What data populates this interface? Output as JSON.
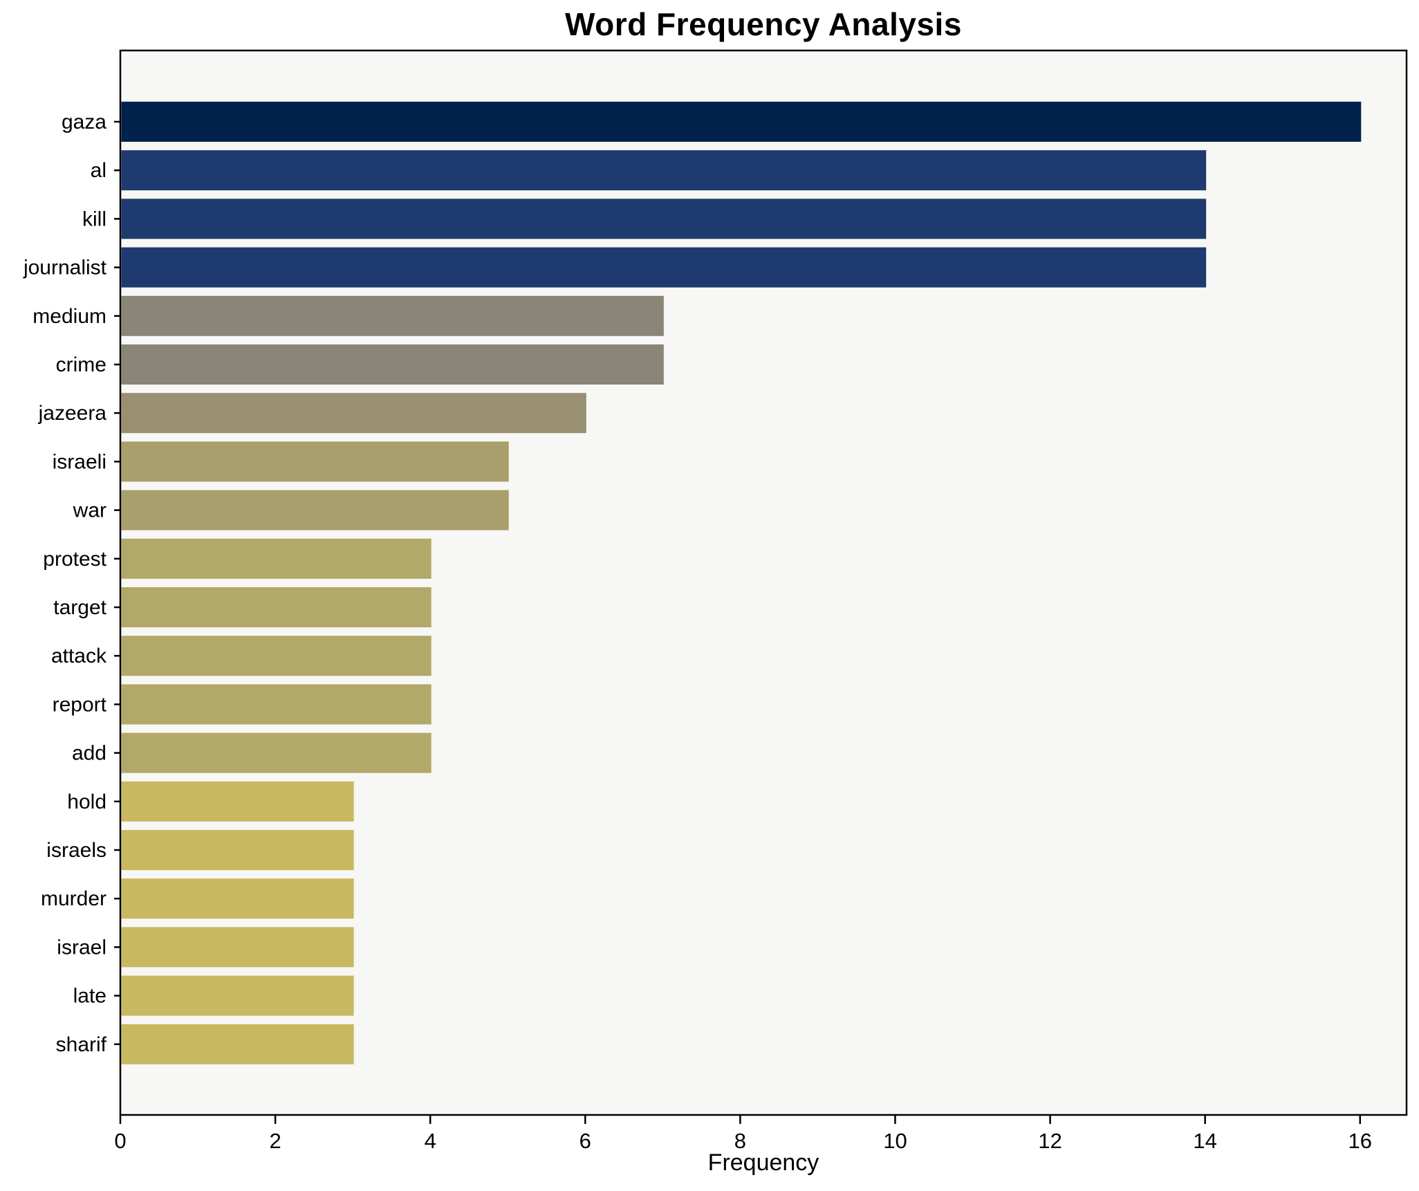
{
  "chart_data": {
    "type": "bar",
    "orientation": "horizontal",
    "title": "Word Frequency Analysis",
    "xlabel": "Frequency",
    "ylabel": "",
    "categories": [
      "gaza",
      "al",
      "kill",
      "journalist",
      "medium",
      "crime",
      "jazeera",
      "israeli",
      "war",
      "protest",
      "target",
      "attack",
      "report",
      "add",
      "hold",
      "israels",
      "murder",
      "israel",
      "late",
      "sharif"
    ],
    "values": [
      16,
      14,
      14,
      14,
      7,
      7,
      6,
      5,
      5,
      4,
      4,
      4,
      4,
      4,
      3,
      3,
      3,
      3,
      3,
      3
    ],
    "bar_colors": [
      "#01224d",
      "#1e3a6e",
      "#1e3a6e",
      "#1e3a6e",
      "#8a8576",
      "#8a8576",
      "#989070",
      "#a99f6d",
      "#a99f6d",
      "#b2a869",
      "#b2a869",
      "#b2a869",
      "#b2a869",
      "#b2a869",
      "#c8b961",
      "#c8b961",
      "#c8b961",
      "#c8b961",
      "#c8b961",
      "#c8b961"
    ],
    "xticks": [
      0,
      2,
      4,
      6,
      8,
      10,
      12,
      14,
      16
    ],
    "xlim": [
      0,
      16.6
    ],
    "grid": false,
    "legend": null,
    "plot_background": "#f7f7f5",
    "figure_background": "#ffffff",
    "axis_color": "#000000",
    "text_color": "#000000"
  }
}
